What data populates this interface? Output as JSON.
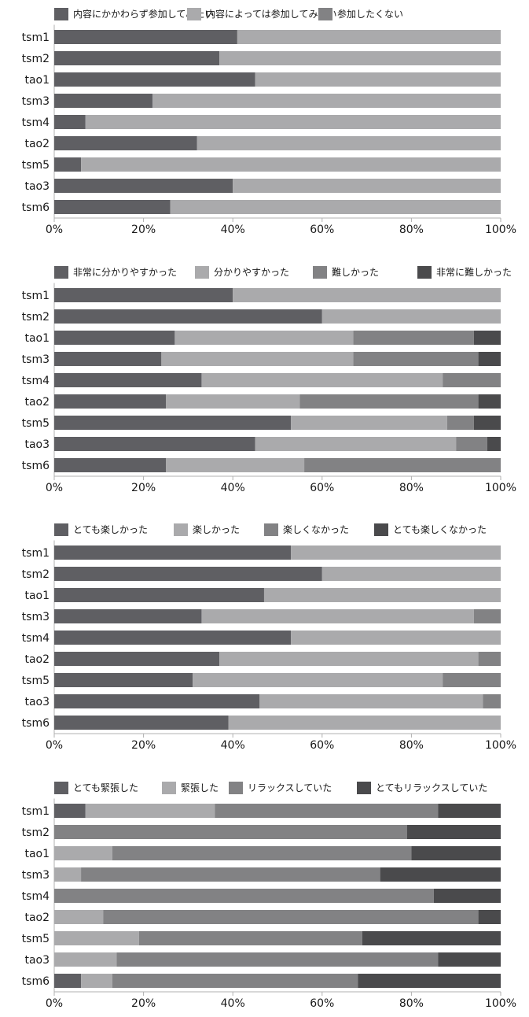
{
  "colors": {
    "dark": "#5f5f63",
    "light": "#aaaaac",
    "mid": "#828284",
    "darkest": "#4a4a4c",
    "axis": "#b0b0b0"
  },
  "chart_data": [
    {
      "type": "bar",
      "orientation": "horizontal",
      "stacked": "percent",
      "categories": [
        "tsm1",
        "tsm2",
        "tao1",
        "tsm3",
        "tsm4",
        "tao2",
        "tsm5",
        "tao3",
        "tsm6"
      ],
      "series": [
        {
          "name": "内容にかかわらず参加してみたい",
          "color": "#5f5f63",
          "values": [
            41,
            37,
            45,
            22,
            7,
            32,
            6,
            40,
            26
          ]
        },
        {
          "name": "内容によっては参加してみたい",
          "color": "#aaaaac",
          "values": [
            59,
            63,
            55,
            78,
            93,
            68,
            94,
            60,
            74
          ]
        },
        {
          "name": "参加したくない",
          "color": "#828284",
          "values": [
            0,
            0,
            0,
            0,
            0,
            0,
            0,
            0,
            0
          ]
        }
      ],
      "xticks": [
        "0%",
        "20%",
        "40%",
        "60%",
        "80%",
        "100%"
      ],
      "xlim": [
        0,
        100
      ],
      "legend_position": "top"
    },
    {
      "type": "bar",
      "orientation": "horizontal",
      "stacked": "percent",
      "categories": [
        "tsm1",
        "tsm2",
        "tao1",
        "tsm3",
        "tsm4",
        "tao2",
        "tsm5",
        "tao3",
        "tsm6"
      ],
      "series": [
        {
          "name": "非常に分かりやすかった",
          "color": "#5f5f63",
          "values": [
            40,
            60,
            27,
            24,
            33,
            25,
            53,
            45,
            25
          ]
        },
        {
          "name": "分かりやすかった",
          "color": "#aaaaac",
          "values": [
            60,
            40,
            40,
            43,
            54,
            30,
            35,
            45,
            31
          ]
        },
        {
          "name": "難しかった",
          "color": "#828284",
          "values": [
            0,
            0,
            27,
            28,
            13,
            40,
            6,
            7,
            44
          ]
        },
        {
          "name": "非常に難しかった",
          "color": "#4a4a4c",
          "values": [
            0,
            0,
            6,
            5,
            0,
            5,
            6,
            3,
            0
          ]
        }
      ],
      "xticks": [
        "0%",
        "20%",
        "40%",
        "60%",
        "80%",
        "100%"
      ],
      "xlim": [
        0,
        100
      ],
      "legend_position": "top"
    },
    {
      "type": "bar",
      "orientation": "horizontal",
      "stacked": "percent",
      "categories": [
        "tsm1",
        "tsm2",
        "tao1",
        "tsm3",
        "tsm4",
        "tao2",
        "tsm5",
        "tao3",
        "tsm6"
      ],
      "series": [
        {
          "name": "とても楽しかった",
          "color": "#5f5f63",
          "values": [
            53,
            60,
            47,
            33,
            53,
            37,
            31,
            46,
            39
          ]
        },
        {
          "name": "楽しかった",
          "color": "#aaaaac",
          "values": [
            47,
            40,
            53,
            61,
            47,
            58,
            56,
            50,
            61
          ]
        },
        {
          "name": "楽しくなかった",
          "color": "#828284",
          "values": [
            0,
            0,
            0,
            6,
            0,
            5,
            13,
            4,
            0
          ]
        },
        {
          "name": "とても楽しくなかった",
          "color": "#4a4a4c",
          "values": [
            0,
            0,
            0,
            0,
            0,
            0,
            0,
            0,
            0
          ]
        }
      ],
      "xticks": [
        "0%",
        "20%",
        "40%",
        "60%",
        "80%",
        "100%"
      ],
      "xlim": [
        0,
        100
      ],
      "legend_position": "top"
    },
    {
      "type": "bar",
      "orientation": "horizontal",
      "stacked": "percent",
      "categories": [
        "tsm1",
        "tsm2",
        "tao1",
        "tsm3",
        "tsm4",
        "tao2",
        "tsm5",
        "tao3",
        "tsm6"
      ],
      "series": [
        {
          "name": "とても緊張した",
          "color": "#5f5f63",
          "values": [
            7,
            0,
            0,
            0,
            0,
            0,
            0,
            0,
            6
          ]
        },
        {
          "name": "緊張した",
          "color": "#aaaaac",
          "values": [
            29,
            0,
            13,
            6,
            0,
            11,
            19,
            14,
            7
          ]
        },
        {
          "name": "リラックスしていた",
          "color": "#828284",
          "values": [
            50,
            79,
            67,
            67,
            85,
            84,
            50,
            72,
            55
          ]
        },
        {
          "name": "とてもリラックスしていた",
          "color": "#4a4a4c",
          "values": [
            14,
            21,
            20,
            27,
            15,
            5,
            31,
            14,
            32
          ]
        }
      ],
      "xticks": [
        "0%",
        "20%",
        "40%",
        "60%",
        "80%",
        "100%"
      ],
      "xlim": [
        0,
        100
      ],
      "legend_position": "top"
    }
  ]
}
